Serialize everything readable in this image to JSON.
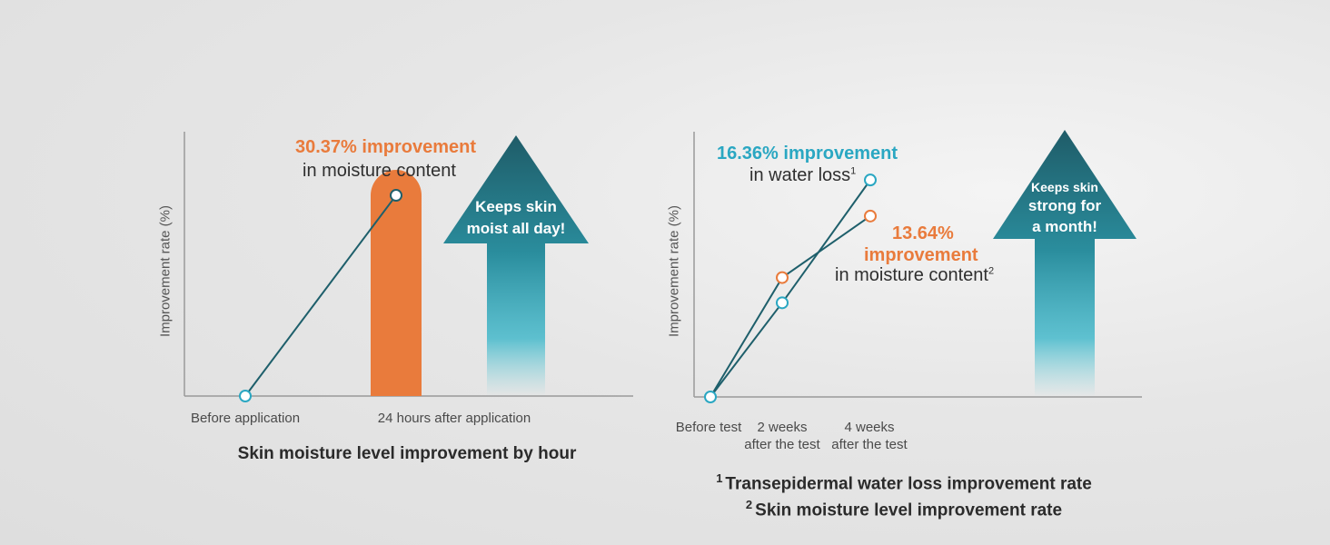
{
  "chart_data": [
    {
      "type": "bar",
      "title": "Skin moisture level improvement by hour",
      "ylabel": "Improvement rate (%)",
      "categories": [
        "Before application",
        "24 hours after application"
      ],
      "series": [
        {
          "values": [
            0,
            30.37
          ]
        }
      ],
      "annotation": {
        "value_text": "30.37% improvement",
        "desc_text": "in moisture content"
      },
      "arrow_text_lines": [
        "Keeps skin",
        "moist all day!"
      ],
      "ylim": [
        0,
        40
      ],
      "grid": false
    },
    {
      "type": "line",
      "ylabel": "Improvement rate (%)",
      "categories": [
        {
          "line1": "Before test",
          "line2": ""
        },
        {
          "line1": "2 weeks",
          "line2": "after the test"
        },
        {
          "line1": "4 weeks",
          "line2": "after the test"
        }
      ],
      "series": [
        {
          "values": [
            0,
            7.1,
            16.36
          ]
        },
        {
          "values": [
            0,
            9.0,
            13.64
          ]
        }
      ],
      "annotations": [
        {
          "value_text": "16.36% improvement",
          "desc_text": "in water loss",
          "sup": "1"
        },
        {
          "value_text": "13.64%",
          "value_text2": "improvement",
          "desc_text": "in moisture content",
          "sup": "2"
        }
      ],
      "arrow_text_lines": [
        "Keeps skin",
        "strong for",
        "a month!"
      ],
      "footnotes": [
        {
          "num": "1",
          "text": "Transepidermal water loss improvement rate"
        },
        {
          "num": "2",
          "text": "Skin moisture level improvement rate"
        }
      ],
      "ylim": [
        0,
        20
      ],
      "grid": false
    }
  ],
  "colors": {
    "orange": "#e97b3c",
    "teal_dark": "#1e5f6b",
    "teal_mid": "#2d8f9f",
    "cyan": "#2aa7c2",
    "axis": "#9a9a9a"
  }
}
